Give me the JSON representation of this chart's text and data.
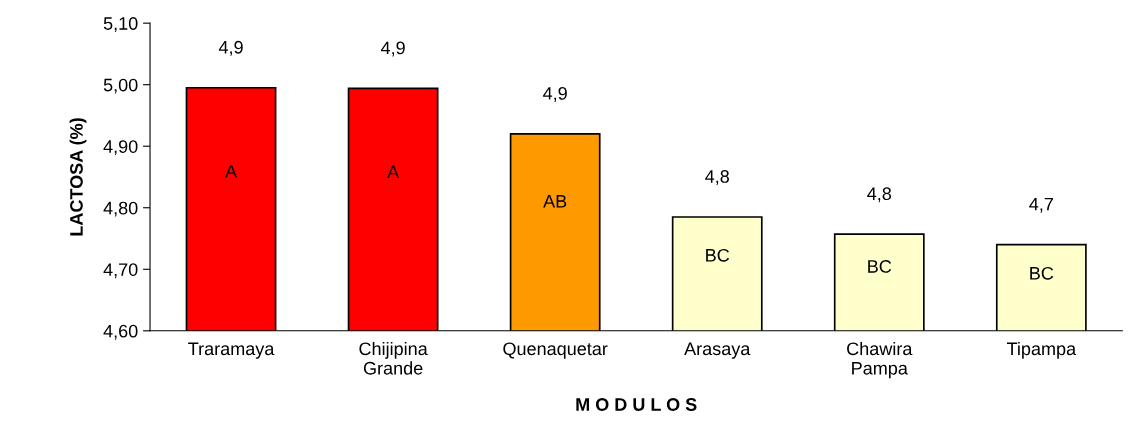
{
  "chart_data": {
    "type": "bar",
    "categories": [
      "Traramaya",
      "Chijipina\nGrande",
      "Quenaquetar",
      "Arasaya",
      "Chawira\nPampa",
      "Tipampa"
    ],
    "values": [
      4.995,
      4.994,
      4.92,
      4.785,
      4.757,
      4.74
    ],
    "colors": [
      "#ff0000",
      "#ff0000",
      "#ff9900",
      "#ffffcc",
      "#ffffcc",
      "#ffffcc"
    ],
    "xlabel": "M O D U L O S",
    "ylabel": "LACTOSA (%)",
    "ylim": [
      4.6,
      5.1
    ],
    "yticks": [
      {
        "value": 4.6,
        "label": "4,60"
      },
      {
        "value": 4.7,
        "label": "4,70"
      },
      {
        "value": 4.8,
        "label": "4,80"
      },
      {
        "value": 4.9,
        "label": "4,90"
      },
      {
        "value": 5.0,
        "label": "5,00"
      },
      {
        "value": 5.1,
        "label": "5,10"
      }
    ],
    "annotations": [
      "4,9",
      "A",
      "4,9",
      "A",
      "4,9",
      "AB",
      "4,8",
      "BC",
      "4,8",
      "BC",
      "4,7",
      "BC"
    ],
    "grid": false,
    "legend": false
  }
}
